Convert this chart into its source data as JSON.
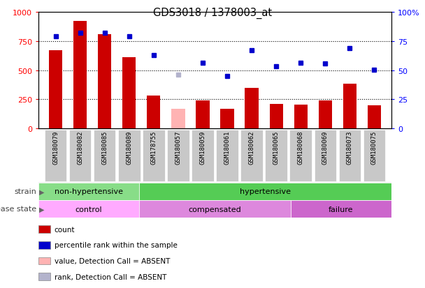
{
  "title": "GDS3018 / 1378003_at",
  "samples": [
    "GSM180079",
    "GSM180082",
    "GSM180085",
    "GSM180089",
    "GSM178755",
    "GSM180057",
    "GSM180059",
    "GSM180061",
    "GSM180062",
    "GSM180065",
    "GSM180068",
    "GSM180069",
    "GSM180073",
    "GSM180075"
  ],
  "count_values": [
    670,
    920,
    810,
    610,
    280,
    null,
    240,
    165,
    350,
    210,
    205,
    240,
    385,
    195
  ],
  "count_absent": [
    null,
    null,
    null,
    null,
    null,
    170,
    null,
    null,
    null,
    null,
    null,
    null,
    null,
    null
  ],
  "percentile_values": [
    790,
    820,
    820,
    790,
    630,
    null,
    560,
    450,
    670,
    530,
    560,
    555,
    690,
    505
  ],
  "percentile_absent": [
    null,
    null,
    null,
    null,
    null,
    460,
    null,
    null,
    null,
    null,
    null,
    null,
    null,
    null
  ],
  "bar_color_present": "#cc0000",
  "bar_color_absent": "#ffb3b3",
  "dot_color_present": "#0000cc",
  "dot_color_absent": "#b3b3cc",
  "ylim_left": [
    0,
    1000
  ],
  "ylim_right": [
    0,
    100
  ],
  "yticks_left": [
    0,
    250,
    500,
    750,
    1000
  ],
  "ytick_labels_left": [
    "0",
    "250",
    "500",
    "750",
    "1000"
  ],
  "yticks_right": [
    0,
    25,
    50,
    75,
    100
  ],
  "ytick_labels_right": [
    "0",
    "25",
    "50",
    "75",
    "100%"
  ],
  "grid_lines": [
    250,
    500,
    750
  ],
  "strain_groups": [
    {
      "label": "non-hypertensive",
      "start": 0,
      "end": 4,
      "color": "#88dd88"
    },
    {
      "label": "hypertensive",
      "start": 4,
      "end": 14,
      "color": "#55cc55"
    }
  ],
  "disease_groups": [
    {
      "label": "control",
      "start": 0,
      "end": 4,
      "color": "#ffaaff"
    },
    {
      "label": "compensated",
      "start": 4,
      "end": 10,
      "color": "#dd88dd"
    },
    {
      "label": "failure",
      "start": 10,
      "end": 14,
      "color": "#cc66cc"
    }
  ],
  "legend_items": [
    {
      "label": "count",
      "color": "#cc0000"
    },
    {
      "label": "percentile rank within the sample",
      "color": "#0000cc"
    },
    {
      "label": "value, Detection Call = ABSENT",
      "color": "#ffb3b3"
    },
    {
      "label": "rank, Detection Call = ABSENT",
      "color": "#b3b3cc"
    }
  ],
  "strain_label": "strain",
  "disease_label": "disease state",
  "tick_box_color": "#c8c8c8"
}
